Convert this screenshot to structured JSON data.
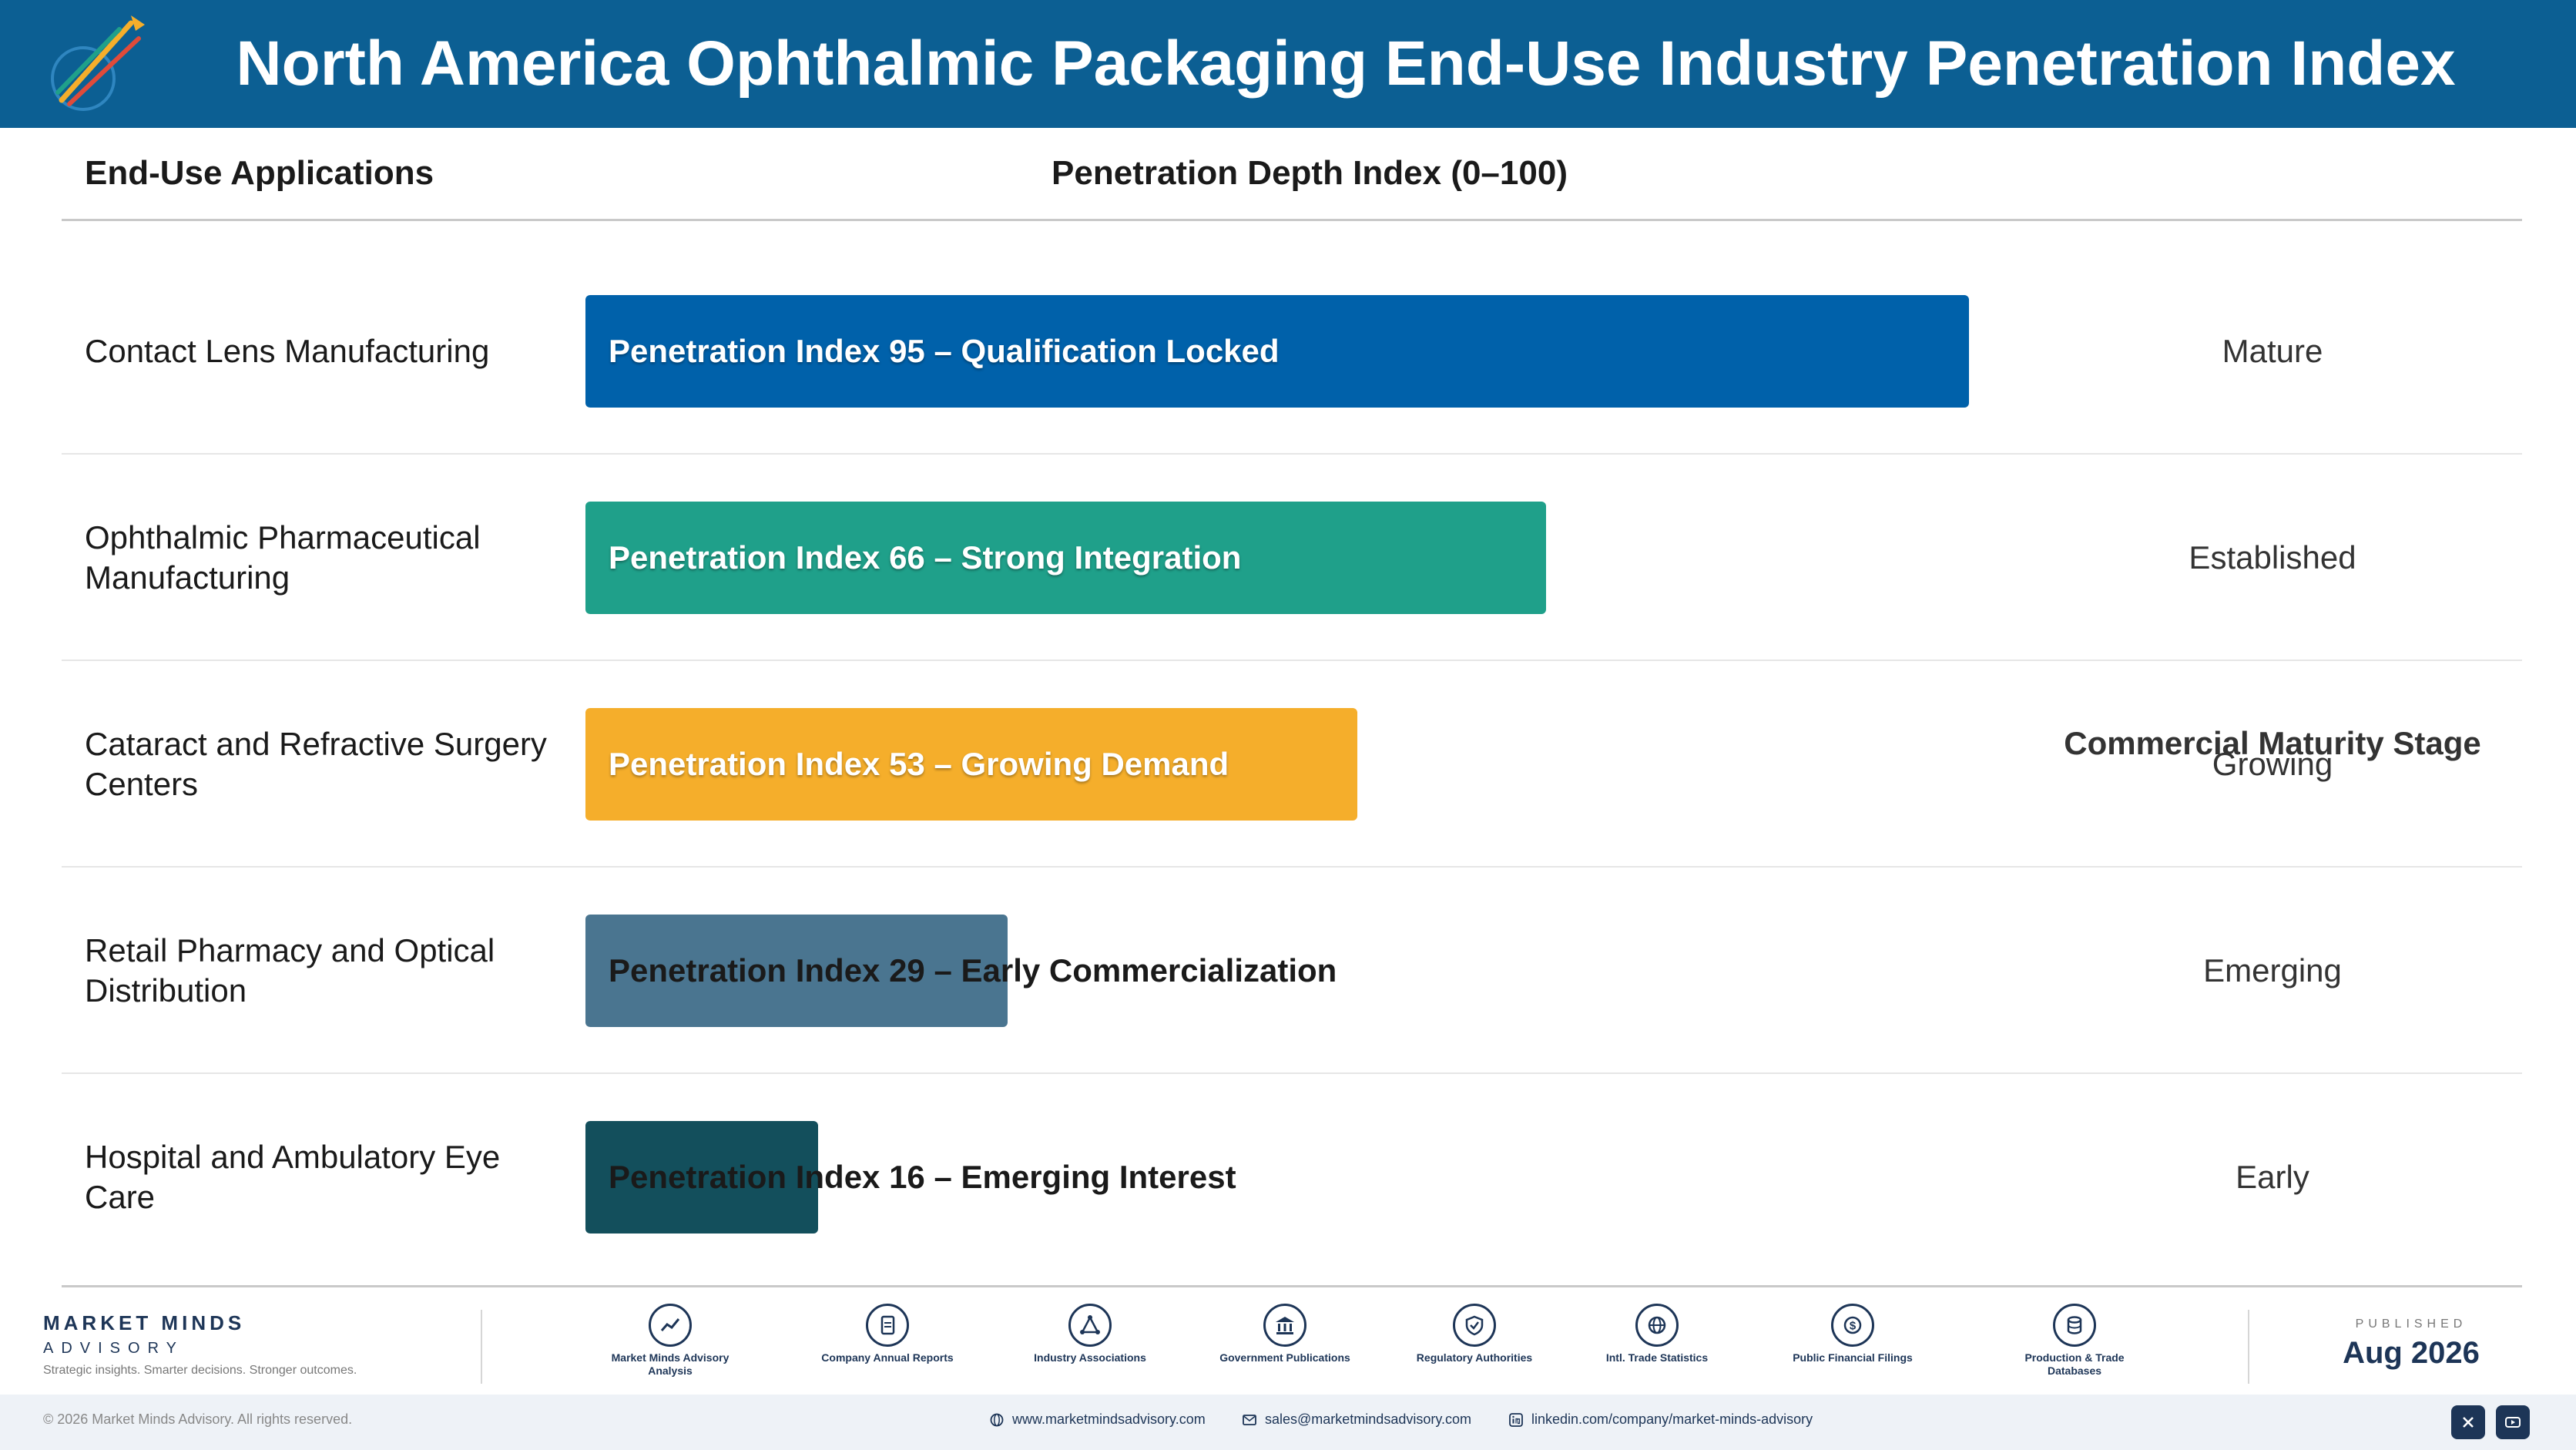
{
  "header": {
    "title": "North America Ophthalmic Packaging End-Use Industry Penetration Index",
    "logo_icon": "market-minds-logo"
  },
  "columns": {
    "applications": "End-Use Applications",
    "penetration": "Penetration Depth Index (0–100)",
    "stage": "Commercial Maturity Stage"
  },
  "chart_data": {
    "type": "bar",
    "orientation": "horizontal",
    "title": "North America Ophthalmic Packaging End-Use Industry Penetration Index",
    "xlim": [
      0,
      100
    ],
    "categories": [
      "Contact Lens Manufacturing",
      "Ophthalmic Pharmaceutical Manufacturing",
      "Cataract and Refractive Surgery Centers",
      "Retail Pharmacy and Optical Distribution",
      "Hospital and Ambulatory Eye Care"
    ],
    "values": [
      95,
      66,
      53,
      29,
      16
    ],
    "bar_labels": [
      "Penetration Index 95 – Qualification Locked",
      "Penetration Index 66 – Strong Integration",
      "Penetration Index 53 – Growing Demand",
      "Penetration Index 29 – Early Commercialization",
      "Penetration Index 16 – Emerging Interest"
    ],
    "stages": [
      "Mature",
      "Established",
      "Growing",
      "Emerging",
      "Early"
    ],
    "colors": [
      "#0061aa",
      "#1fa08a",
      "#f5ae2b",
      "#4a7590",
      "#134f5c"
    ]
  },
  "footer": {
    "brand_name": "MARKET MINDS",
    "brand_sub": "ADVISORY",
    "tagline": "Strategic insights. Smarter decisions. Stronger outcomes.",
    "sources": [
      {
        "label": "Market Minds Advisory Analysis",
        "icon": "chart-line-icon"
      },
      {
        "label": "Company Annual Reports",
        "icon": "document-icon"
      },
      {
        "label": "Industry Associations",
        "icon": "network-icon"
      },
      {
        "label": "Government Publications",
        "icon": "government-building-icon"
      },
      {
        "label": "Regulatory Authorities",
        "icon": "shield-check-icon"
      },
      {
        "label": "Intl. Trade Statistics",
        "icon": "globe-icon"
      },
      {
        "label": "Public Financial Filings",
        "icon": "dollar-coin-icon"
      },
      {
        "label": "Production & Trade Databases",
        "icon": "database-icon"
      }
    ],
    "published_label": "PUBLISHED",
    "published_date": "Aug 2026",
    "copyright": "© 2026 Market Minds Advisory. All rights reserved.",
    "website": "www.marketmindsadvisory.com",
    "email": "sales@marketmindsadvisory.com",
    "linkedin": "linkedin.com/company/market-minds-advisory"
  }
}
